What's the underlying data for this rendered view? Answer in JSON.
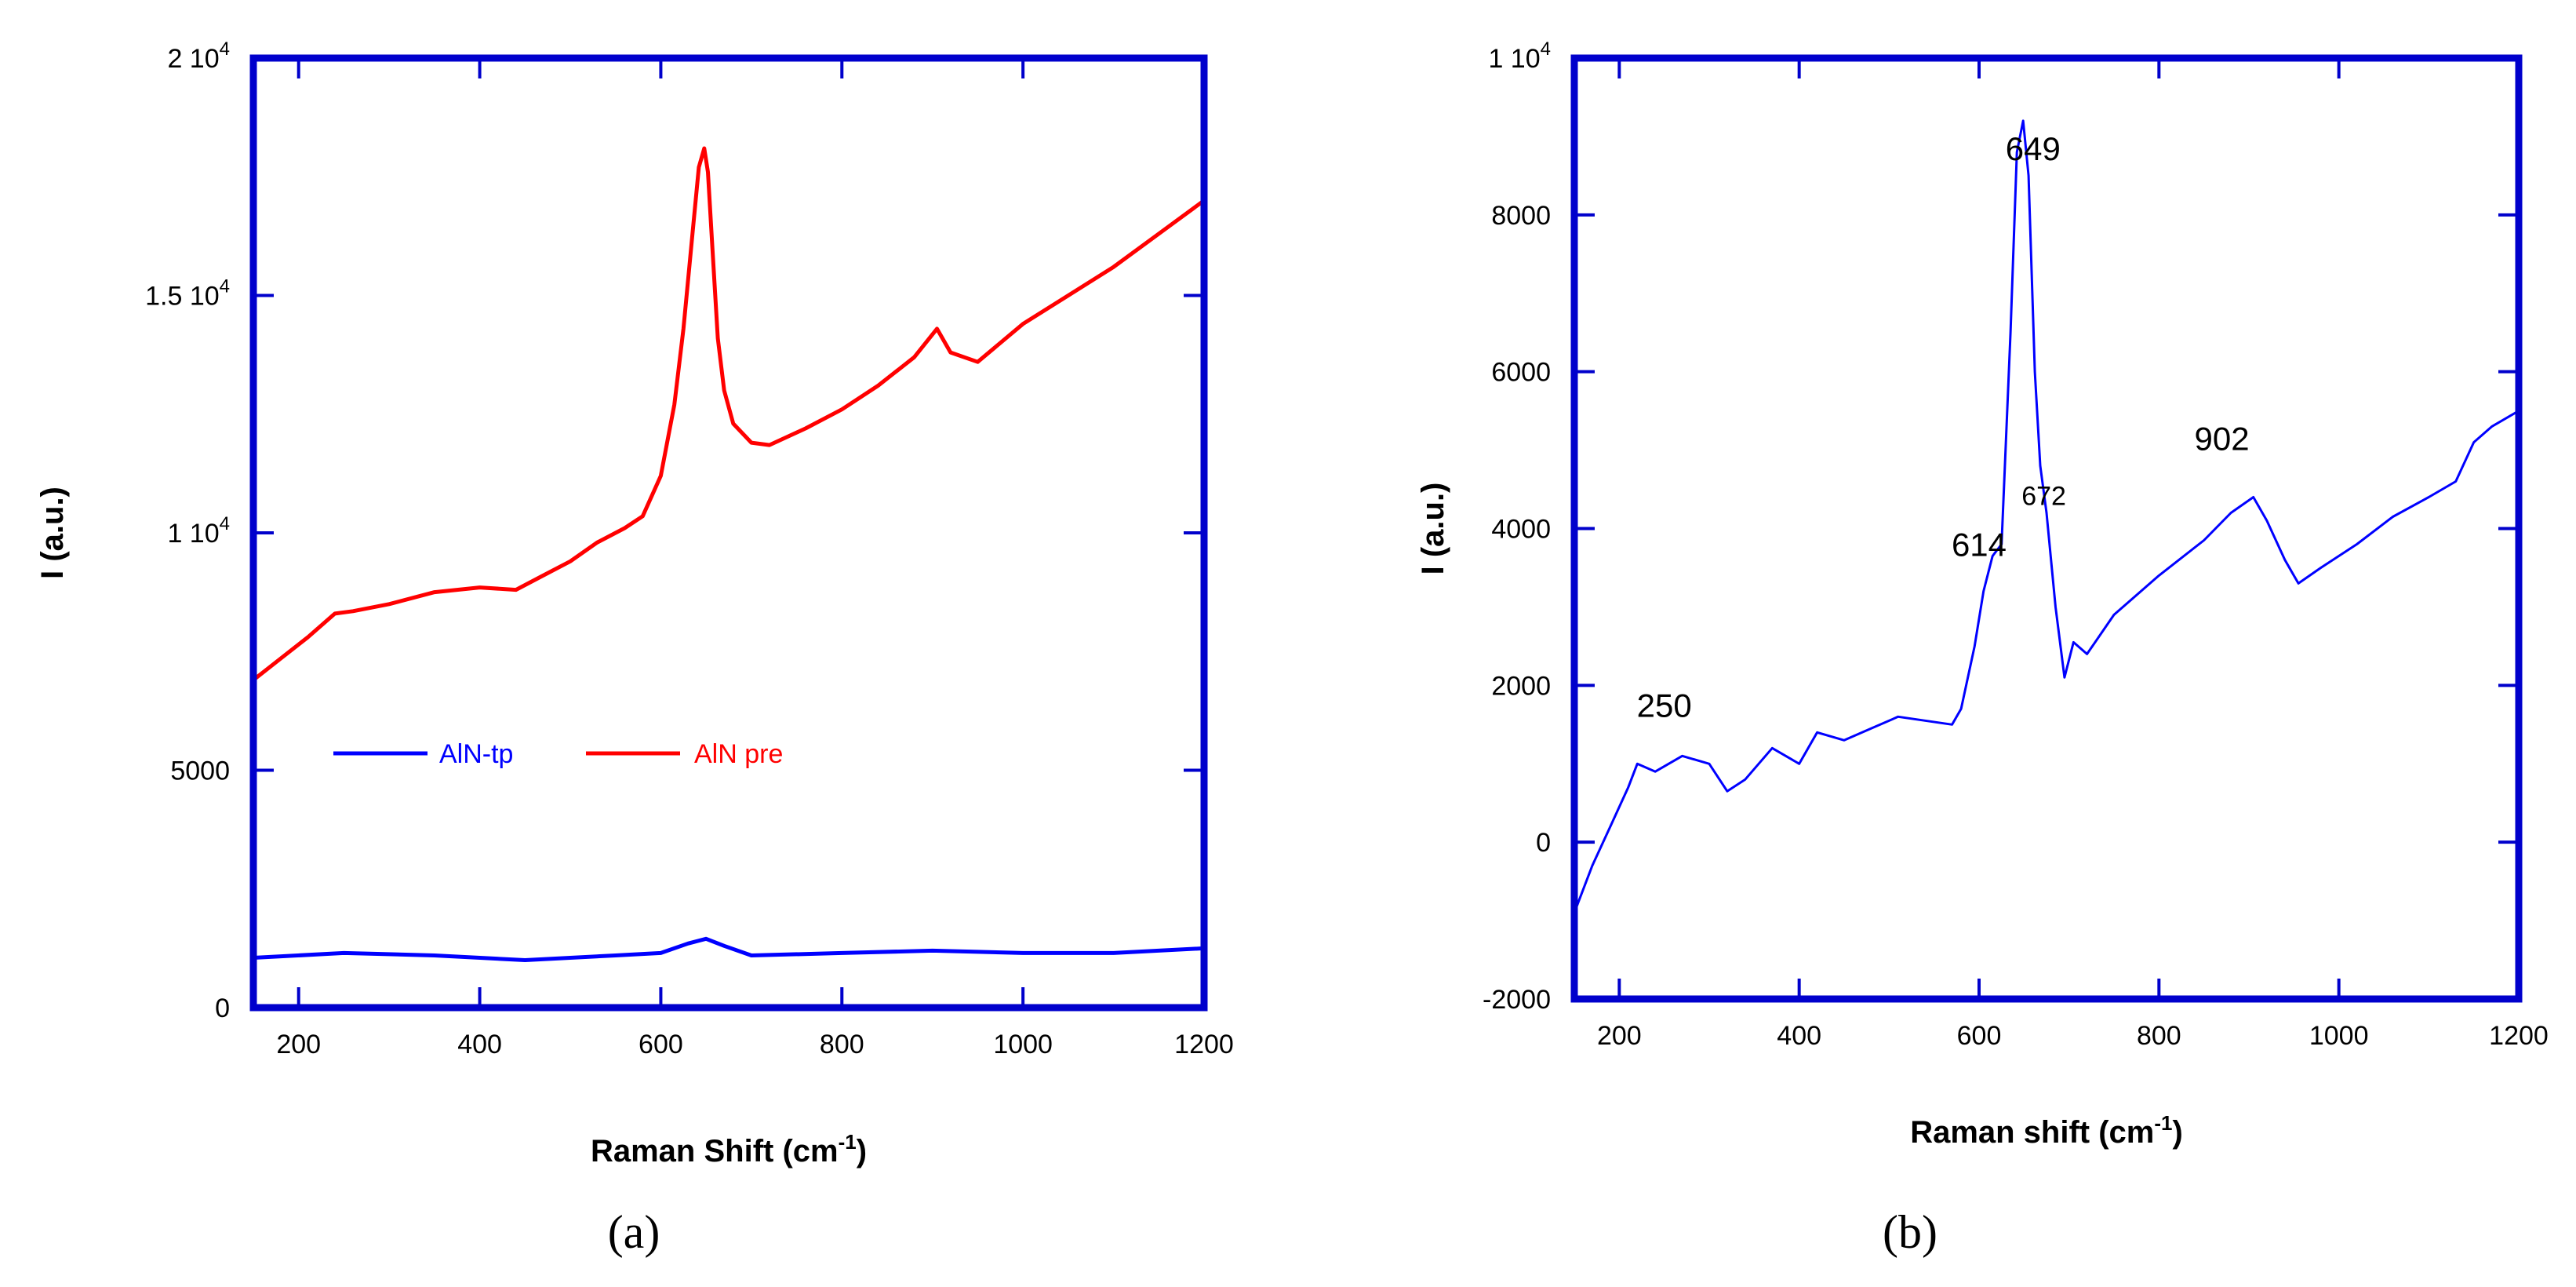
{
  "chart_data": [
    {
      "type": "line",
      "panel_label": "(a)",
      "xlabel": "Raman Shift (cm",
      "xlabel_sup": "-1",
      "xlabel_end": ")",
      "ylabel": "I (a.u.)",
      "xlim": [
        150,
        1200
      ],
      "ylim": [
        0,
        20000
      ],
      "xticks": [
        200,
        400,
        600,
        800,
        1000,
        1200
      ],
      "yticks": [
        {
          "value": 0,
          "label": "0",
          "sup": ""
        },
        {
          "value": 5000,
          "label": "5000",
          "sup": ""
        },
        {
          "value": 10000,
          "label": "1 10",
          "sup": "4"
        },
        {
          "value": 15000,
          "label": "1.5 10",
          "sup": "4"
        },
        {
          "value": 20000,
          "label": "2 10",
          "sup": "4"
        }
      ],
      "legend": [
        {
          "name": "AlN-tp",
          "color": "#0000ff"
        },
        {
          "name": "AlN pre",
          "color": "#ff0000"
        }
      ],
      "legend_position": "middle-left",
      "axis_color": "#0000cc",
      "series": [
        {
          "name": "AlN pre",
          "color": "#ff0000",
          "x": [
            150,
            180,
            210,
            240,
            260,
            300,
            350,
            400,
            440,
            470,
            500,
            530,
            560,
            580,
            600,
            615,
            625,
            635,
            642,
            648,
            652,
            657,
            663,
            670,
            680,
            700,
            720,
            760,
            800,
            840,
            880,
            905,
            920,
            950,
            1000,
            1050,
            1100,
            1150,
            1200
          ],
          "y": [
            6900,
            7350,
            7800,
            8300,
            8350,
            8500,
            8750,
            8850,
            8800,
            9100,
            9400,
            9800,
            10100,
            10350,
            11200,
            12700,
            14300,
            16300,
            17700,
            18100,
            17600,
            16000,
            14100,
            13000,
            12300,
            11900,
            11850,
            12200,
            12600,
            13100,
            13700,
            14300,
            13800,
            13600,
            14400,
            15000,
            15600,
            16300,
            17000
          ]
        },
        {
          "name": "AlN-tp",
          "color": "#0000ff",
          "x": [
            150,
            250,
            350,
            450,
            550,
            600,
            630,
            650,
            670,
            700,
            800,
            900,
            1000,
            1100,
            1200
          ],
          "y": [
            1050,
            1150,
            1100,
            1000,
            1100,
            1150,
            1350,
            1450,
            1300,
            1100,
            1150,
            1200,
            1150,
            1150,
            1250
          ]
        }
      ]
    },
    {
      "type": "line",
      "panel_label": "(b)",
      "xlabel": "Raman shift (cm",
      "xlabel_sup": "-1",
      "xlabel_end": ")",
      "ylabel": "I (a.u.)",
      "xlim": [
        150,
        1200
      ],
      "ylim": [
        -2000,
        10000
      ],
      "xticks": [
        200,
        400,
        600,
        800,
        1000,
        1200
      ],
      "yticks": [
        {
          "value": -2000,
          "label": "-2000",
          "sup": ""
        },
        {
          "value": 0,
          "label": "0",
          "sup": ""
        },
        {
          "value": 2000,
          "label": "2000",
          "sup": ""
        },
        {
          "value": 4000,
          "label": "4000",
          "sup": ""
        },
        {
          "value": 6000,
          "label": "6000",
          "sup": ""
        },
        {
          "value": 8000,
          "label": "8000",
          "sup": ""
        },
        {
          "value": 10000,
          "label": "1 10",
          "sup": "4"
        }
      ],
      "axis_color": "#0000cc",
      "annotations": [
        {
          "text": "250",
          "x": 250,
          "y": 1600,
          "size": "large"
        },
        {
          "text": "614",
          "x": 600,
          "y": 3650,
          "size": "large"
        },
        {
          "text": "649",
          "x": 660,
          "y": 8700,
          "size": "large"
        },
        {
          "text": "672",
          "x": 672,
          "y": 4300,
          "size": "small"
        },
        {
          "text": "902",
          "x": 870,
          "y": 5000,
          "size": "large"
        }
      ],
      "series": [
        {
          "name": "",
          "color": "#0000ff",
          "x": [
            150,
            170,
            190,
            210,
            220,
            240,
            270,
            300,
            320,
            340,
            370,
            400,
            420,
            450,
            480,
            510,
            540,
            570,
            580,
            595,
            605,
            615,
            625,
            635,
            642,
            649,
            655,
            662,
            668,
            675,
            685,
            695,
            705,
            720,
            750,
            800,
            850,
            880,
            905,
            920,
            940,
            955,
            980,
            1020,
            1060,
            1100,
            1130,
            1150,
            1170,
            1200
          ],
          "y": [
            -900,
            -300,
            200,
            700,
            1000,
            900,
            1100,
            1000,
            650,
            800,
            1200,
            1000,
            1400,
            1300,
            1450,
            1600,
            1550,
            1500,
            1700,
            2500,
            3200,
            3650,
            3800,
            6500,
            8800,
            9200,
            8500,
            6000,
            4800,
            4200,
            3000,
            2100,
            2550,
            2400,
            2900,
            3400,
            3850,
            4200,
            4400,
            4100,
            3600,
            3300,
            3500,
            3800,
            4150,
            4400,
            4600,
            5100,
            5300,
            5500
          ]
        }
      ]
    }
  ]
}
